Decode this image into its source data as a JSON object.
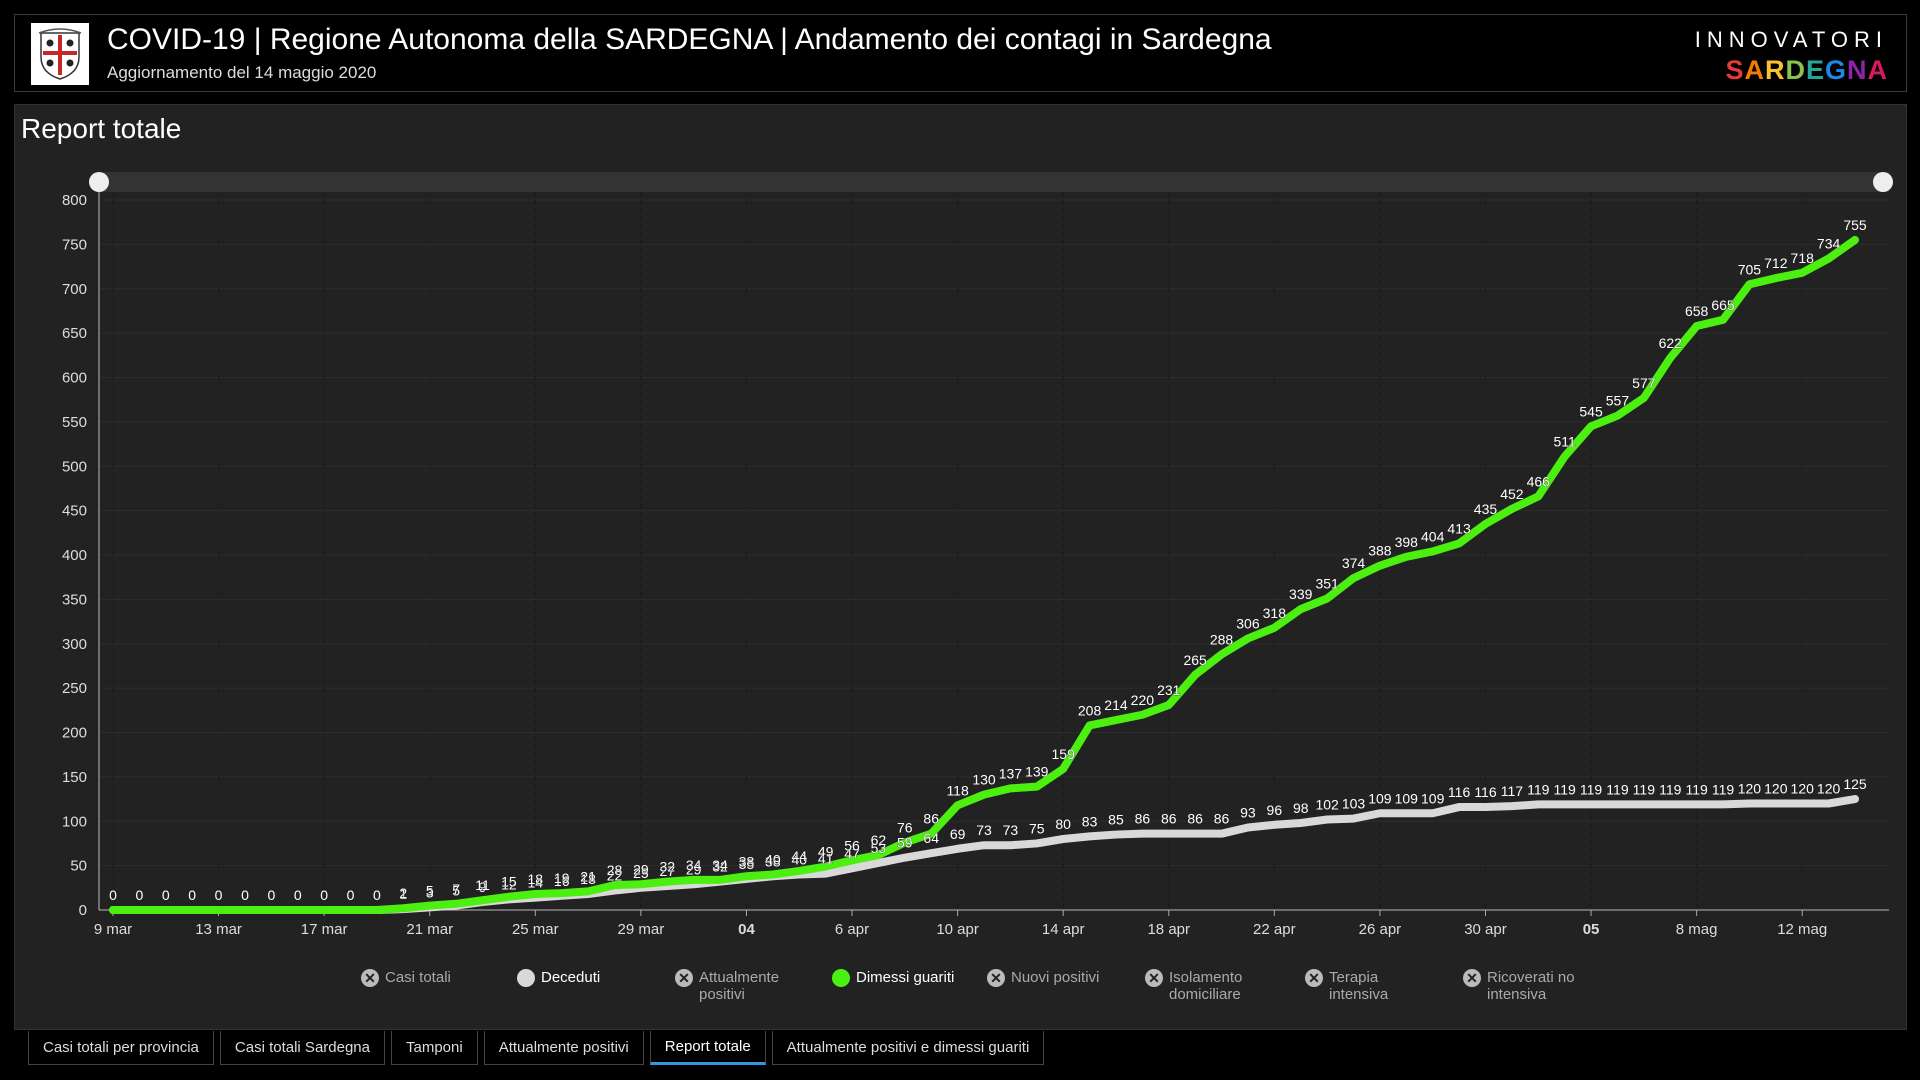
{
  "header": {
    "title": "COVID-19 | Regione Autonoma della SARDEGNA | Andamento dei contagi in Sardegna",
    "subtitle": "Aggiornamento del 14 maggio 2020",
    "brand_top": "INNOVATORI",
    "brand_bottom_letters": [
      "S",
      "A",
      "R",
      "D",
      "E",
      "G",
      "N",
      "A"
    ],
    "brand_colors": [
      "#e53935",
      "#f57c00",
      "#fbc02d",
      "#8bc34a",
      "#26a69a",
      "#1e88e5",
      "#8e24aa",
      "#d81b60"
    ]
  },
  "panel": {
    "title": "Report totale"
  },
  "chart_data": {
    "type": "line",
    "ylim": [
      0,
      800
    ],
    "yticks": [
      0,
      50,
      100,
      150,
      200,
      250,
      300,
      350,
      400,
      450,
      500,
      550,
      600,
      650,
      700,
      750,
      800
    ],
    "x_tick_labels": [
      "9 mar",
      "13 mar",
      "17 mar",
      "21 mar",
      "25 mar",
      "29 mar",
      "04",
      "6 apr",
      "10 apr",
      "14 apr",
      "18 apr",
      "22 apr",
      "26 apr",
      "30 apr",
      "05",
      "8 mag",
      "12 mag"
    ],
    "x_tick_days": [
      0,
      4,
      8,
      12,
      16,
      20,
      24,
      28,
      32,
      36,
      40,
      44,
      48,
      52,
      56,
      60,
      64
    ],
    "x_range": [
      "9 mar",
      "15 mag"
    ],
    "series": [
      {
        "name": "Dimessi guariti",
        "color": "#4cf010",
        "values": [
          0,
          0,
          0,
          0,
          0,
          0,
          0,
          0,
          0,
          0,
          0,
          2,
          5,
          7,
          11,
          15,
          18,
          19,
          21,
          28,
          29,
          32,
          34,
          34,
          38,
          40,
          44,
          49,
          56,
          62,
          76,
          86,
          118,
          130,
          137,
          139,
          159,
          208,
          214,
          220,
          231,
          265,
          288,
          306,
          318,
          339,
          351,
          374,
          388,
          398,
          404,
          413,
          435,
          452,
          466,
          511,
          545,
          557,
          577,
          622,
          658,
          665,
          705,
          712,
          718,
          734,
          755
        ]
      },
      {
        "name": "Deceduti",
        "color": "#d9d9d9",
        "values": [
          0,
          0,
          0,
          0,
          0,
          0,
          0,
          0,
          0,
          0,
          0,
          1,
          3,
          5,
          9,
          12,
          14,
          16,
          18,
          22,
          25,
          27,
          29,
          32,
          35,
          38,
          40,
          41,
          47,
          53,
          59,
          64,
          69,
          73,
          73,
          75,
          80,
          83,
          85,
          86,
          86,
          86,
          86,
          93,
          96,
          98,
          102,
          103,
          109,
          109,
          109,
          116,
          116,
          117,
          119,
          119,
          119,
          119,
          119,
          119,
          119,
          119,
          120,
          120,
          120,
          120,
          125
        ]
      }
    ],
    "grid": true
  },
  "legend": [
    {
      "label": "Casi totali",
      "active": false
    },
    {
      "label": "Deceduti",
      "active": true,
      "color": "#d9d9d9"
    },
    {
      "label": "Attualmente positivi",
      "active": false
    },
    {
      "label": "Dimessi guariti",
      "active": true,
      "color": "#4cf010"
    },
    {
      "label": "Nuovi positivi",
      "active": false
    },
    {
      "label": "Isolamento domiciliare",
      "active": false
    },
    {
      "label": "Terapia intensiva",
      "active": false
    },
    {
      "label": "Ricoverati no intensiva",
      "active": false
    }
  ],
  "tabs": [
    {
      "label": "Casi totali per provincia",
      "active": false
    },
    {
      "label": "Casi totali Sardegna",
      "active": false
    },
    {
      "label": "Tamponi",
      "active": false
    },
    {
      "label": "Attualmente positivi",
      "active": false
    },
    {
      "label": "Report totale",
      "active": true
    },
    {
      "label": "Attualmente positivi e dimessi guariti",
      "active": false
    }
  ]
}
